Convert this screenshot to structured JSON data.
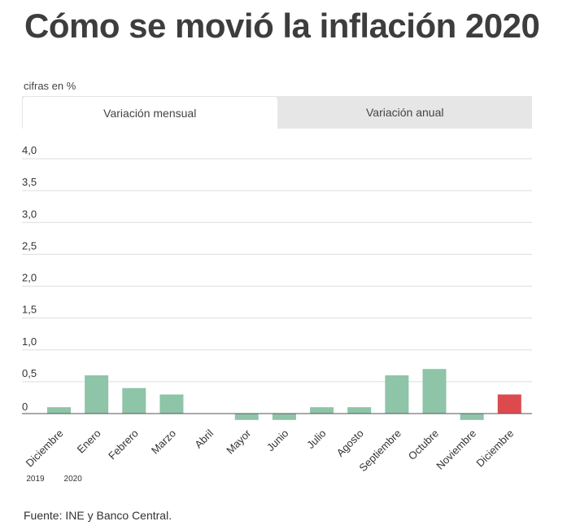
{
  "header": {
    "title": "Cómo se movió la inflación 2020"
  },
  "units_label": "cifras en %",
  "tabs": [
    {
      "label": "Variación mensual",
      "active": true
    },
    {
      "label": "Variación anual",
      "active": false
    }
  ],
  "source": "Fuente: INE y Banco Central.",
  "colors": {
    "bar": "#8ec4a8",
    "highlight": "#dd4a4e",
    "grid": "#dddddd",
    "zero_line": "#555555"
  },
  "chart_data": {
    "type": "bar",
    "categories": [
      "Diciembre",
      "Enero",
      "Febrero",
      "Marzo",
      "Abril",
      "Mayor",
      "Junio",
      "Julio",
      "Agosto",
      "Septiembre",
      "Octubre",
      "Noviembre",
      "Diciembre"
    ],
    "values": [
      0.1,
      0.6,
      0.4,
      0.3,
      0.0,
      -0.1,
      -0.1,
      0.1,
      0.1,
      0.6,
      0.7,
      -0.1,
      0.3
    ],
    "highlight_index": 12,
    "year_labels": [
      {
        "index": 0,
        "label": "2019"
      },
      {
        "index": 1,
        "label": "2020"
      }
    ],
    "y_ticks": [
      {
        "value": 0,
        "label": "0"
      },
      {
        "value": 0.5,
        "label": "0,5"
      },
      {
        "value": 1.0,
        "label": "1,0"
      },
      {
        "value": 1.5,
        "label": "1,5"
      },
      {
        "value": 2.0,
        "label": "2,0"
      },
      {
        "value": 2.5,
        "label": "2,5"
      },
      {
        "value": 3.0,
        "label": "3,0"
      },
      {
        "value": 3.5,
        "label": "3,5"
      },
      {
        "value": 4.0,
        "label": "4,0"
      }
    ],
    "ylim": [
      -0.2,
      4.0
    ],
    "grid": true
  }
}
